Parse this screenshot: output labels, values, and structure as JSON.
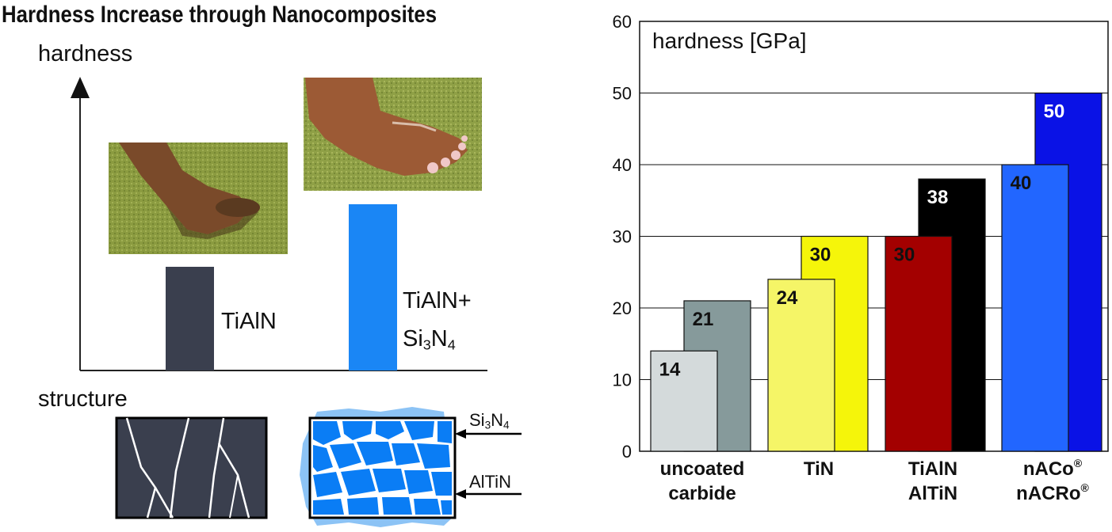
{
  "left": {
    "title": "Hardness Increase through Nanocomposites",
    "axis_label": "hardness",
    "bar1_label": "TiAlN",
    "bar2_label_line1": "TiAlN+",
    "bar2_label_si": "Si",
    "bar2_label_sub1": "3",
    "bar2_label_n": "N",
    "bar2_label_sub2": "4",
    "structure_label": "structure",
    "arrow1_si": "Si",
    "arrow1_sub1": "3",
    "arrow1_n": "N",
    "arrow1_sub2": "4",
    "arrow2_label": "AlTiN",
    "colors": {
      "bar1": "#3a3f4e",
      "bar2": "#1a86f5",
      "grain": "#0a7df5"
    }
  },
  "chart_data": {
    "type": "bar",
    "title": "hardness [GPa]",
    "ylim": [
      0,
      60
    ],
    "yticks": [
      0,
      10,
      20,
      30,
      40,
      50,
      60
    ],
    "grid": true,
    "groups": [
      {
        "label_lines": [
          "uncoated",
          "carbide"
        ],
        "bars": [
          {
            "value": 14,
            "color": "#d4dadb",
            "text_color": "#111111"
          },
          {
            "value": 21,
            "color": "#869a9b",
            "text_color": "#111111"
          }
        ]
      },
      {
        "label_lines": [
          "TiN"
        ],
        "bars": [
          {
            "value": 24,
            "color": "#f5f567",
            "text_color": "#111111"
          },
          {
            "value": 30,
            "color": "#f5f50a",
            "text_color": "#111111"
          }
        ]
      },
      {
        "label_lines": [
          "TiAlN",
          "AlTiN"
        ],
        "bars": [
          {
            "value": 30,
            "color": "#a30000",
            "text_color": "#111111"
          },
          {
            "value": 38,
            "color": "#000000",
            "text_color": "#ffffff"
          }
        ]
      },
      {
        "label_lines": [
          "nACo®",
          "nACRo®"
        ],
        "bars": [
          {
            "value": 40,
            "color": "#2266ff",
            "text_color": "#111111"
          },
          {
            "value": 50,
            "color": "#0a12e6",
            "text_color": "#ffffff"
          }
        ]
      }
    ]
  }
}
